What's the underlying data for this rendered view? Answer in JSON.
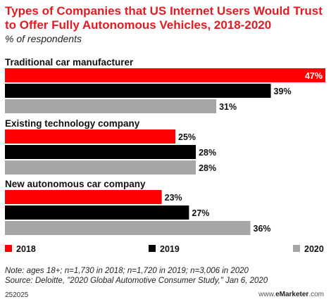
{
  "header": {
    "title": "Types of Companies that US Internet Users Would Trust to Offer Fully Autonomous Vehicles, 2018-2020",
    "subtitle": "% of respondents"
  },
  "footer": {
    "note_line1": "Note: ages 18+; n=1,730 in 2018; n=1,720 in 2019; n=3,006 in 2020",
    "note_line2": "Source: Deloitte, \"2020 Global Automotive Consumer Study,\" Jan 6, 2020",
    "chart_id": "252025",
    "brand_prefix": "www.",
    "brand_name": "eMarketer",
    "brand_suffix": ".com"
  },
  "chart_data": {
    "type": "bar",
    "orientation": "horizontal",
    "categories": [
      "Traditional car manufacturer",
      "Existing technology company",
      "New autonomous car company"
    ],
    "series": [
      {
        "name": "2018",
        "color": "#ff0000",
        "values": [
          47,
          25,
          23
        ]
      },
      {
        "name": "2019",
        "color": "#000000",
        "values": [
          39,
          28,
          27
        ]
      },
      {
        "name": "2020",
        "color": "#a6a6a6",
        "values": [
          31,
          28,
          36
        ]
      }
    ],
    "value_suffix": "%",
    "xlim": [
      0,
      47
    ],
    "legend_position": "bottom",
    "grid": false
  }
}
